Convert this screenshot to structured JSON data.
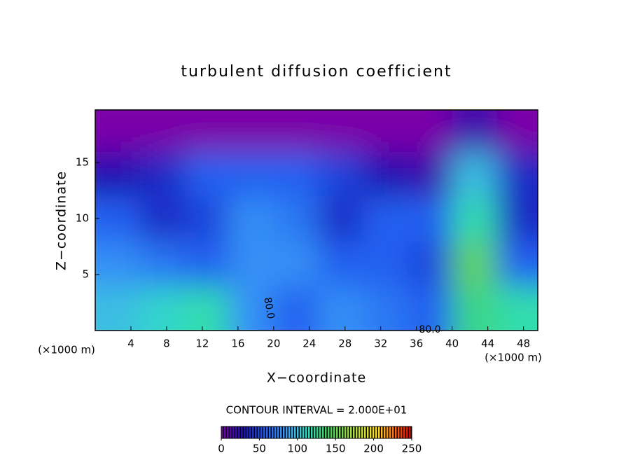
{
  "chart_data": {
    "type": "contour",
    "title": "turbulent diffusion coefficient",
    "x_label": "X−coordinate",
    "y_label": "Z−coordinate",
    "x_unit_label": "(×1000 m)",
    "x_unit_label_right": "(×1000 m)",
    "contour_interval_text": "CONTOUR INTERVAL = 2.000E+01",
    "contour_labels": [
      "80.0",
      "80.0"
    ],
    "xlim": [
      0,
      49.6
    ],
    "ylim": [
      0,
      19.7
    ],
    "xticks": [
      4,
      8,
      12,
      16,
      20,
      24,
      28,
      32,
      36,
      40,
      44,
      48
    ],
    "yticks": [
      5,
      10,
      15
    ],
    "field": {
      "x": [
        2.5,
        7.5,
        12.5,
        17.5,
        22.5,
        27.5,
        32.5,
        37.5,
        42.5,
        47.5
      ],
      "y": [
        2,
        6,
        10,
        14,
        18
      ],
      "values": [
        [
          100,
          110,
          120,
          80,
          60,
          80,
          70,
          60,
          130,
          120
        ],
        [
          80,
          70,
          60,
          80,
          80,
          60,
          60,
          50,
          150,
          60
        ],
        [
          60,
          40,
          50,
          80,
          70,
          40,
          60,
          60,
          120,
          40
        ],
        [
          30,
          40,
          60,
          60,
          60,
          50,
          30,
          20,
          100,
          40
        ],
        [
          0,
          0,
          0,
          0,
          0,
          0,
          0,
          0,
          20,
          0
        ]
      ]
    },
    "colorbar": {
      "lim": [
        0,
        250
      ],
      "ticks": [
        0,
        50,
        100,
        150,
        200,
        250
      ]
    },
    "colormap": [
      {
        "value": 0,
        "color": "#7a00a8"
      },
      {
        "value": 30,
        "color": "#1a10b0"
      },
      {
        "value": 60,
        "color": "#2060f0"
      },
      {
        "value": 90,
        "color": "#40a8f8"
      },
      {
        "value": 115,
        "color": "#30e0c0"
      },
      {
        "value": 140,
        "color": "#40d060"
      },
      {
        "value": 175,
        "color": "#b0e040"
      },
      {
        "value": 205,
        "color": "#ffe020"
      },
      {
        "value": 230,
        "color": "#ff6010"
      },
      {
        "value": 250,
        "color": "#d00000"
      }
    ]
  }
}
